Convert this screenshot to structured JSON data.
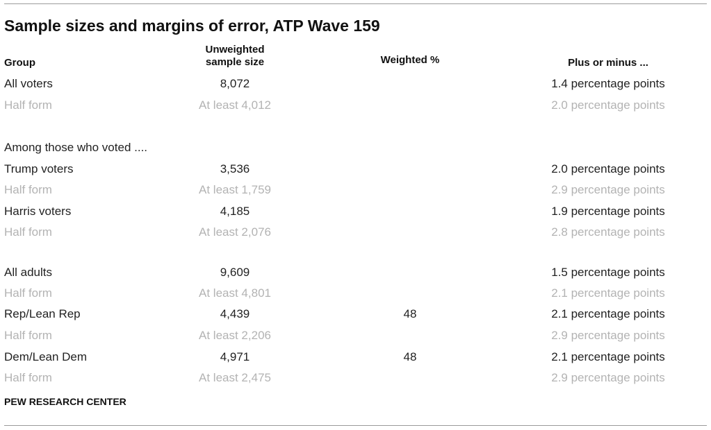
{
  "title": "Sample sizes and margins of error, ATP Wave 159",
  "headers": {
    "group": "Group",
    "unweighted_line1": "Unweighted",
    "unweighted_line2": "sample size",
    "weighted": "Weighted %",
    "moe": "Plus or minus ..."
  },
  "rows": [
    {
      "group": "All voters",
      "size": "8,072",
      "weighted": "",
      "moe": "1.4 percentage points"
    },
    {
      "group": "Half form",
      "size": "At least 4,012",
      "weighted": "",
      "moe": "2.0 percentage points"
    },
    {
      "group": "Among those who voted ....",
      "size": "",
      "weighted": "",
      "moe": ""
    },
    {
      "group": "Trump voters",
      "size": "3,536",
      "weighted": "",
      "moe": "2.0 percentage points"
    },
    {
      "group": "Half form",
      "size": "At least 1,759",
      "weighted": "",
      "moe": "2.9 percentage points"
    },
    {
      "group": "Harris voters",
      "size": "4,185",
      "weighted": "",
      "moe": "1.9 percentage points"
    },
    {
      "group": "Half form",
      "size": "At least 2,076",
      "weighted": "",
      "moe": "2.8 percentage points"
    },
    {
      "group": "All adults",
      "size": "9,609",
      "weighted": "",
      "moe": "1.5 percentage points"
    },
    {
      "group": "Half form",
      "size": "At least 4,801",
      "weighted": "",
      "moe": "2.1 percentage points"
    },
    {
      "group": "Rep/Lean Rep",
      "size": "4,439",
      "weighted": "48",
      "moe": "2.1 percentage points"
    },
    {
      "group": "Half form",
      "size": "At least 2,206",
      "weighted": "",
      "moe": "2.9 percentage points"
    },
    {
      "group": "Dem/Lean Dem",
      "size": "4,971",
      "weighted": "48",
      "moe": "2.1 percentage points"
    },
    {
      "group": "Half form",
      "size": "At least 2,475",
      "weighted": "",
      "moe": "2.9 percentage points"
    }
  ],
  "source": "PEW RESEARCH CENTER",
  "colors": {
    "primary_text": "#222222",
    "half_form_text": "#b3b3b3",
    "rule": "#9a9a9a"
  }
}
